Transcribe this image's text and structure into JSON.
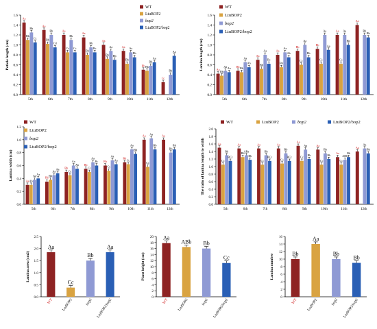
{
  "figure": {
    "colors": {
      "WT": "#8e2323",
      "LtuBOP2": "#d9a341",
      "bop2": "#8f9ad4",
      "LtuBOP2/bop2": "#2a5fb5",
      "axis": "#000000",
      "label_red": "#cc1111"
    }
  },
  "chart_data": [
    {
      "id": "petiole",
      "type": "bar",
      "ylabel": "Petiole length (cm)",
      "ylim": [
        0,
        1.6
      ],
      "yticks": [
        0,
        0.2,
        0.4,
        0.6,
        0.8,
        1.0,
        1.2,
        1.4,
        1.6
      ],
      "grid": false,
      "legend": "top-right",
      "categories": [
        "5th",
        "6th",
        "7th",
        "8th",
        "9th",
        "10th",
        "11th",
        "12th"
      ],
      "series": [
        {
          "name": "WT",
          "values": [
            1.45,
            1.3,
            1.2,
            1.15,
            1.0,
            0.88,
            0.5,
            0.25
          ],
          "labels": [
            "Aa",
            "Aa",
            "Aa",
            "Aa",
            "Aa",
            "Aa",
            "Bb",
            "Cc"
          ]
        },
        {
          "name": "LtuBOP2",
          "values": [
            1.1,
            1.02,
            0.85,
            0.8,
            0.72,
            0.62,
            0.48,
            null
          ],
          "labels": [
            "Bb",
            "Bb",
            "Cc",
            "Bb",
            "Bb",
            "Bb",
            "Bb",
            ""
          ]
        },
        {
          "name": "bop2",
          "values": [
            1.25,
            1.2,
            1.1,
            0.95,
            0.88,
            0.85,
            0.58,
            0.4
          ],
          "labels": [
            "Bb",
            "Bb",
            "Bb",
            "Bb",
            "Aa",
            "Aa",
            "Bb",
            "Bb"
          ]
        },
        {
          "name": "LtuBOP2/bop2",
          "values": [
            1.05,
            0.95,
            0.85,
            0.85,
            0.7,
            0.75,
            0.65,
            0.78
          ],
          "labels": [
            "Cc",
            "Cd",
            "Cc",
            "Bc",
            "Bb",
            "Bb",
            "Aa",
            "Aa"
          ]
        }
      ]
    },
    {
      "id": "lamina_length",
      "type": "bar",
      "ylabel": "Lamina length (cm)",
      "ylim": [
        0,
        1.6
      ],
      "yticks": [
        0,
        0.2,
        0.4,
        0.6,
        0.8,
        1.0,
        1.2,
        1.4,
        1.6
      ],
      "grid": false,
      "legend": "top-left",
      "categories": [
        "5th",
        "6th",
        "7th",
        "8th",
        "9th",
        "10th",
        "11th",
        "12th"
      ],
      "series": [
        {
          "name": "WT",
          "values": [
            0.42,
            0.48,
            0.7,
            0.8,
            0.88,
            0.92,
            1.2,
            1.4
          ],
          "labels": [
            "Aa",
            "Bb",
            "Aa",
            "Aa",
            "Bb",
            "Bb",
            "Aa",
            "Aa"
          ]
        },
        {
          "name": "LtuBOP2",
          "values": [
            0.38,
            0.45,
            0.52,
            0.55,
            0.6,
            0.62,
            0.62,
            null
          ],
          "labels": [
            "Bb",
            "Bb",
            "Bb",
            "Bb",
            "Cc",
            "Cc",
            "Cc",
            ""
          ]
        },
        {
          "name": "bop2",
          "values": [
            0.48,
            0.65,
            0.8,
            0.85,
            1.0,
            1.2,
            1.2,
            1.2
          ],
          "labels": [
            "Aa",
            "Aa",
            "Aa",
            "Aa",
            "Aa",
            "Aa",
            "Aa",
            "Bb"
          ]
        },
        {
          "name": "LtuBOP2/bop2",
          "values": [
            0.45,
            0.55,
            0.62,
            0.75,
            0.75,
            0.9,
            1.0,
            1.15
          ],
          "labels": [
            "Aa",
            "Ab",
            "Bc",
            "Ab",
            "Bb",
            "Aa",
            "Bb",
            "Bb"
          ]
        }
      ]
    },
    {
      "id": "lamina_width",
      "type": "bar",
      "ylabel": "Lamina width (cm)",
      "ylim": [
        0,
        1.2
      ],
      "yticks": [
        0,
        0.2,
        0.4,
        0.6,
        0.8,
        1.0,
        1.2
      ],
      "grid": false,
      "legend": "top-left",
      "categories": [
        "5th",
        "6th",
        "7th",
        "8th",
        "9th",
        "10th",
        "11th",
        "12th"
      ],
      "series": [
        {
          "name": "WT",
          "values": [
            0.3,
            0.35,
            0.5,
            0.55,
            0.6,
            0.65,
            1.0,
            1.0
          ],
          "labels": [
            "Aa",
            "Bb",
            "Bb",
            "Bb",
            "Bb",
            "Bb",
            "Aa",
            "Aa"
          ]
        },
        {
          "name": "LtuBOP2",
          "values": [
            0.3,
            0.38,
            0.45,
            0.5,
            0.52,
            0.62,
            0.58,
            null
          ],
          "labels": [
            "Ab",
            "Bb",
            "Cc",
            "Cc",
            "Cc",
            "Cc",
            "Cc",
            ""
          ]
        },
        {
          "name": "bop2",
          "values": [
            0.38,
            0.45,
            0.6,
            0.65,
            0.68,
            0.85,
            1.02,
            0.8
          ],
          "labels": [
            "Aa",
            "Aa",
            "Aa",
            "Aa",
            "Aa",
            "Aa",
            "Aa",
            "Bb"
          ]
        },
        {
          "name": "LtuBOP2/bop2",
          "values": [
            0.4,
            0.48,
            0.55,
            0.6,
            0.62,
            0.78,
            0.85,
            0.85
          ],
          "labels": [
            "Aa",
            "Aa",
            "Ab",
            "Bc",
            "Aa",
            "Bb",
            "Bb",
            "Bb"
          ]
        }
      ]
    },
    {
      "id": "ratio",
      "type": "bar",
      "ylabel": "The ratio of lamina length to width",
      "ylim": [
        0,
        2.0
      ],
      "yticks": [
        0,
        0.2,
        0.4,
        0.6,
        0.8,
        1.0,
        1.2,
        1.4,
        1.6,
        1.8,
        2.0
      ],
      "grid": false,
      "legend": "top",
      "categories": [
        "5th",
        "6th",
        "7th",
        "8th",
        "9th",
        "10th",
        "11th",
        "12th"
      ],
      "series": [
        {
          "name": "WT",
          "values": [
            1.5,
            1.48,
            1.48,
            1.48,
            1.55,
            1.45,
            1.25,
            1.4
          ],
          "labels": [
            "Aa",
            "Aa",
            "Aa",
            "Aa",
            "Aa",
            "Aa",
            "Aa",
            "Aa"
          ]
        },
        {
          "name": "LtuBOP2",
          "values": [
            1.05,
            1.25,
            1.05,
            1.08,
            1.15,
            1.05,
            1.05,
            null
          ],
          "labels": [
            "Cc",
            "Bb",
            "Cc",
            "Cc",
            "Cc",
            "Cc",
            "Cc",
            ""
          ]
        },
        {
          "name": "bop2",
          "values": [
            1.3,
            1.3,
            1.3,
            1.35,
            1.45,
            1.35,
            1.18,
            1.48
          ],
          "labels": [
            "Bb",
            "ABa",
            "Bb",
            "Bb",
            "Aa",
            "Bb",
            "ABb",
            "Aa"
          ]
        },
        {
          "name": "LtuBOP2/bop2",
          "values": [
            1.15,
            1.18,
            1.15,
            1.15,
            1.2,
            1.2,
            1.25,
            1.35
          ],
          "labels": [
            "BCc",
            "Bb",
            "BCc",
            "BCc",
            "Bb",
            "Bb",
            "Bb",
            "Bb"
          ]
        }
      ]
    },
    {
      "id": "lamina_area",
      "type": "bar",
      "ylabel": "Lamina area (cm2)",
      "ylim": [
        0,
        2.5
      ],
      "yticks": [
        0,
        0.5,
        1.0,
        1.5,
        2.0,
        2.5
      ],
      "grid": false,
      "categories": [
        "WT",
        "LtuBOP2",
        "bop2",
        "LtuBOP2/bop2"
      ],
      "values": [
        1.85,
        0.38,
        1.5,
        1.85
      ],
      "labels": [
        "Aa",
        "Cc",
        "Bb",
        "Aa"
      ]
    },
    {
      "id": "plant_height",
      "type": "bar",
      "ylabel": "Plant height (cm)",
      "ylim": [
        0,
        20
      ],
      "yticks": [
        0,
        2,
        4,
        6,
        8,
        10,
        12,
        14,
        16,
        18,
        20
      ],
      "grid": false,
      "categories": [
        "WT",
        "LtuBOP2",
        "bop2",
        "LtuBOP2/bop2"
      ],
      "values": [
        17.8,
        16.5,
        16.0,
        11.2
      ],
      "labels": [
        "Aa",
        "ABb",
        "Bb",
        "Cc"
      ]
    },
    {
      "id": "lamina_number",
      "type": "bar",
      "ylabel": "Lamina number",
      "ylim": [
        0,
        16
      ],
      "yticks": [
        0,
        2,
        4,
        6,
        8,
        10,
        12,
        14,
        16
      ],
      "grid": false,
      "categories": [
        "WT",
        "LtuBOP2",
        "bop2",
        "LtuBOP2/bop2"
      ],
      "values": [
        10,
        14,
        10,
        9
      ],
      "labels": [
        "Bb",
        "Aa",
        "Bb",
        "Bb"
      ]
    }
  ]
}
